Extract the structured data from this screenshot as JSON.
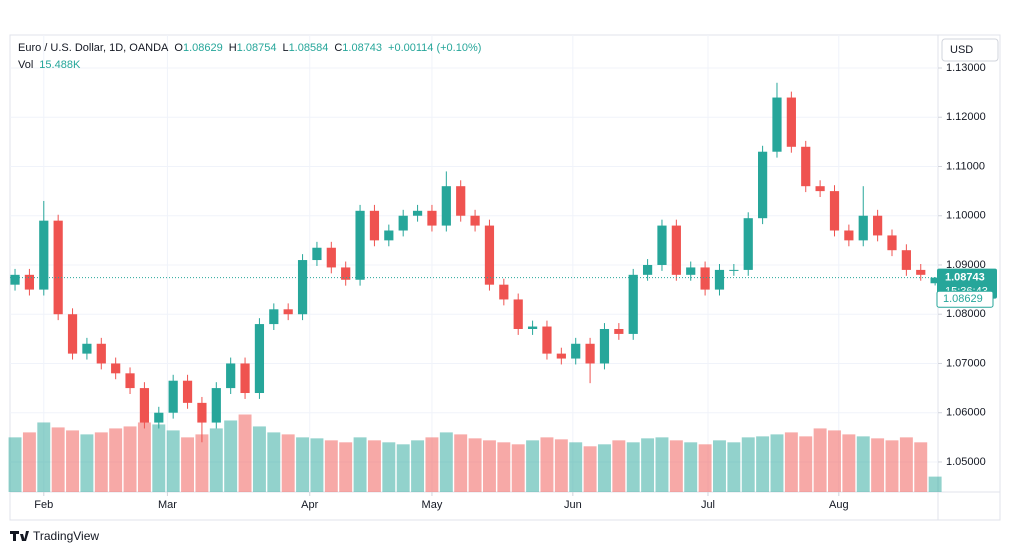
{
  "chart_data": {
    "type": "candlestick",
    "title": "Euro / U.S. Dollar, 1D, OANDA",
    "ohlc_labels": [
      "O",
      "H",
      "L",
      "C"
    ],
    "change": "+0.00114 (+0.10%)",
    "volume_name": "Vol",
    "volume_text": "15.488K",
    "currency": "USD",
    "countdown": "15:36:43",
    "brand": "TradingView",
    "up_color": "#26a69a",
    "down_color": "#ef5350",
    "grid": true,
    "xlim": [
      -0.35,
      64.2
    ],
    "xticks": [
      {
        "value": 2,
        "label": "Feb"
      },
      {
        "value": 10.6,
        "label": "Mar"
      },
      {
        "value": 20.5,
        "label": "Apr"
      },
      {
        "value": 29,
        "label": "May"
      },
      {
        "value": 38.8,
        "label": "Jun"
      },
      {
        "value": 48.2,
        "label": "Jul"
      },
      {
        "value": 57.3,
        "label": "Aug"
      }
    ],
    "ylim": [
      1.0439,
      1.1367
    ],
    "yticks": [
      {
        "value": 1.05,
        "label": "1.05000"
      },
      {
        "value": 1.06,
        "label": "1.06000"
      },
      {
        "value": 1.07,
        "label": "1.07000"
      },
      {
        "value": 1.08,
        "label": "1.08000"
      },
      {
        "value": 1.09,
        "label": "1.09000"
      },
      {
        "value": 1.1,
        "label": "1.10000"
      },
      {
        "value": 1.11,
        "label": "1.11000"
      },
      {
        "value": 1.12,
        "label": "1.12000"
      },
      {
        "value": 1.13,
        "label": "1.13000"
      }
    ],
    "volume_ylim": [
      0,
      460
    ],
    "open": [
      1.086,
      1.088,
      1.085,
      1.099,
      1.08,
      1.072,
      1.074,
      1.07,
      1.068,
      1.065,
      1.058,
      1.06,
      1.0665,
      1.062,
      1.058,
      1.065,
      1.07,
      1.064,
      1.078,
      1.081,
      1.08,
      1.091,
      1.0935,
      1.0895,
      1.087,
      1.101,
      1.095,
      1.097,
      1.1,
      1.101,
      1.098,
      1.106,
      1.1,
      1.098,
      1.086,
      1.083,
      1.077,
      1.0775,
      1.072,
      1.071,
      1.074,
      1.07,
      1.077,
      1.076,
      1.088,
      1.09,
      1.098,
      1.088,
      1.0895,
      1.085,
      1.089,
      1.089,
      1.0995,
      1.113,
      1.124,
      1.114,
      1.106,
      1.105,
      1.097,
      1.095,
      1.1,
      1.096,
      1.093,
      1.089,
      1.08629
    ],
    "high": [
      1.0892,
      1.0892,
      1.103,
      1.1002,
      1.0812,
      1.0752,
      1.0752,
      1.0712,
      1.0692,
      1.0662,
      1.0612,
      1.0677,
      1.0677,
      1.0632,
      1.0662,
      1.0712,
      1.0712,
      1.0792,
      1.0822,
      1.0822,
      1.0922,
      1.0947,
      1.0947,
      1.0907,
      1.1022,
      1.1022,
      1.0982,
      1.1012,
      1.1022,
      1.1022,
      1.109,
      1.1072,
      1.1012,
      1.0992,
      1.0872,
      1.0842,
      1.0787,
      1.0787,
      1.0732,
      1.0752,
      1.0752,
      1.0782,
      1.0782,
      1.0892,
      1.0912,
      1.0992,
      1.0992,
      1.0907,
      1.0907,
      1.0902,
      1.0902,
      1.1007,
      1.1142,
      1.127,
      1.1252,
      1.1152,
      1.1072,
      1.1062,
      1.0982,
      1.106,
      1.1012,
      1.0972,
      1.0942,
      1.0902,
      1.08754
    ],
    "low": [
      1.0848,
      1.0838,
      1.0838,
      1.0788,
      1.0708,
      1.0708,
      1.0688,
      1.0668,
      1.0638,
      1.0568,
      1.0568,
      1.0588,
      1.0608,
      1.054,
      1.0568,
      1.0638,
      1.0628,
      1.0628,
      1.0768,
      1.0788,
      1.0788,
      1.0898,
      1.0883,
      1.0858,
      1.0858,
      1.0938,
      1.0938,
      1.0958,
      1.0988,
      1.0968,
      1.0968,
      1.0988,
      1.0968,
      1.0848,
      1.0818,
      1.0758,
      1.0758,
      1.0708,
      1.0698,
      1.0698,
      1.066,
      1.0688,
      1.0748,
      1.0748,
      1.0868,
      1.0888,
      1.0868,
      1.0868,
      1.0838,
      1.0838,
      1.0878,
      1.0878,
      1.0983,
      1.1118,
      1.1128,
      1.1048,
      1.1038,
      1.0958,
      1.0938,
      1.0938,
      1.0948,
      1.0918,
      1.0878,
      1.0868,
      1.08584
    ],
    "close": [
      1.088,
      1.085,
      1.099,
      1.08,
      1.072,
      1.074,
      1.07,
      1.068,
      1.065,
      1.058,
      1.06,
      1.0665,
      1.062,
      1.058,
      1.065,
      1.07,
      1.064,
      1.078,
      1.081,
      1.08,
      1.091,
      1.0935,
      1.0895,
      1.087,
      1.101,
      1.095,
      1.097,
      1.1,
      1.101,
      1.098,
      1.106,
      1.1,
      1.098,
      1.086,
      1.083,
      1.077,
      1.0775,
      1.072,
      1.071,
      1.074,
      1.07,
      1.077,
      1.076,
      1.088,
      1.09,
      1.098,
      1.088,
      1.0895,
      1.085,
      1.089,
      1.089,
      1.0995,
      1.113,
      1.124,
      1.114,
      1.106,
      1.105,
      1.097,
      1.095,
      1.1,
      1.096,
      1.093,
      1.089,
      1.088,
      1.08743
    ],
    "volume": [
      55,
      60,
      70,
      65,
      62,
      58,
      60,
      64,
      66,
      70,
      68,
      62,
      55,
      58,
      64,
      72,
      78,
      66,
      60,
      58,
      55,
      54,
      52,
      50,
      55,
      52,
      50,
      48,
      52,
      55,
      60,
      58,
      54,
      52,
      50,
      48,
      52,
      55,
      53,
      50,
      46,
      48,
      52,
      50,
      54,
      55,
      52,
      50,
      48,
      52,
      50,
      55,
      56,
      58,
      60,
      56,
      64,
      62,
      58,
      56,
      54,
      52,
      55,
      50,
      15.488
    ]
  }
}
